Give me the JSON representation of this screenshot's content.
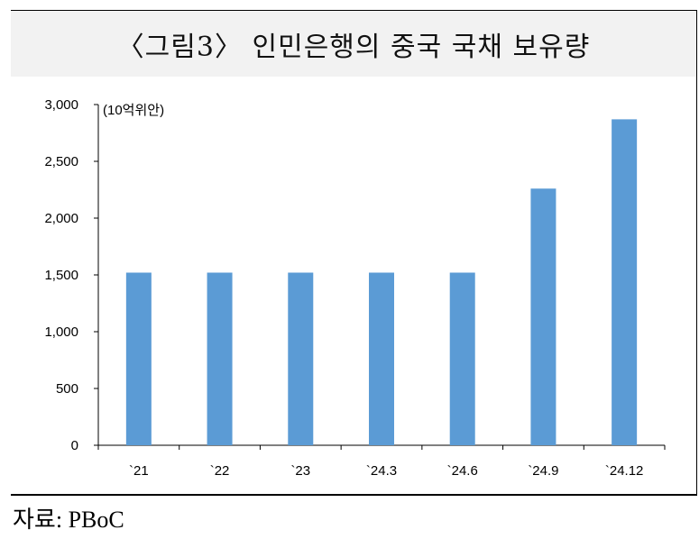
{
  "title": "〈그림3〉 인민은행의 중국 국채 보유량",
  "source": "자료: PBoC",
  "chart_data": {
    "type": "bar",
    "title": "〈그림3〉 인민은행의 중국 국채 보유량",
    "unit_label": "(10억위안)",
    "categories": [
      "`21",
      "`22",
      "`23",
      "`24.3",
      "`24.6",
      "`24.9",
      "`24.12"
    ],
    "values": [
      1520,
      1520,
      1520,
      1520,
      1520,
      2260,
      2870
    ],
    "ylim": [
      0,
      3000
    ],
    "yticks": [
      0,
      500,
      1000,
      1500,
      2000,
      2500,
      3000
    ],
    "ytick_labels": [
      "0",
      "500",
      "1,000",
      "1,500",
      "2,000",
      "2,500",
      "3,000"
    ],
    "bar_color": "#5b9bd5",
    "grid": false,
    "legend": "none"
  }
}
